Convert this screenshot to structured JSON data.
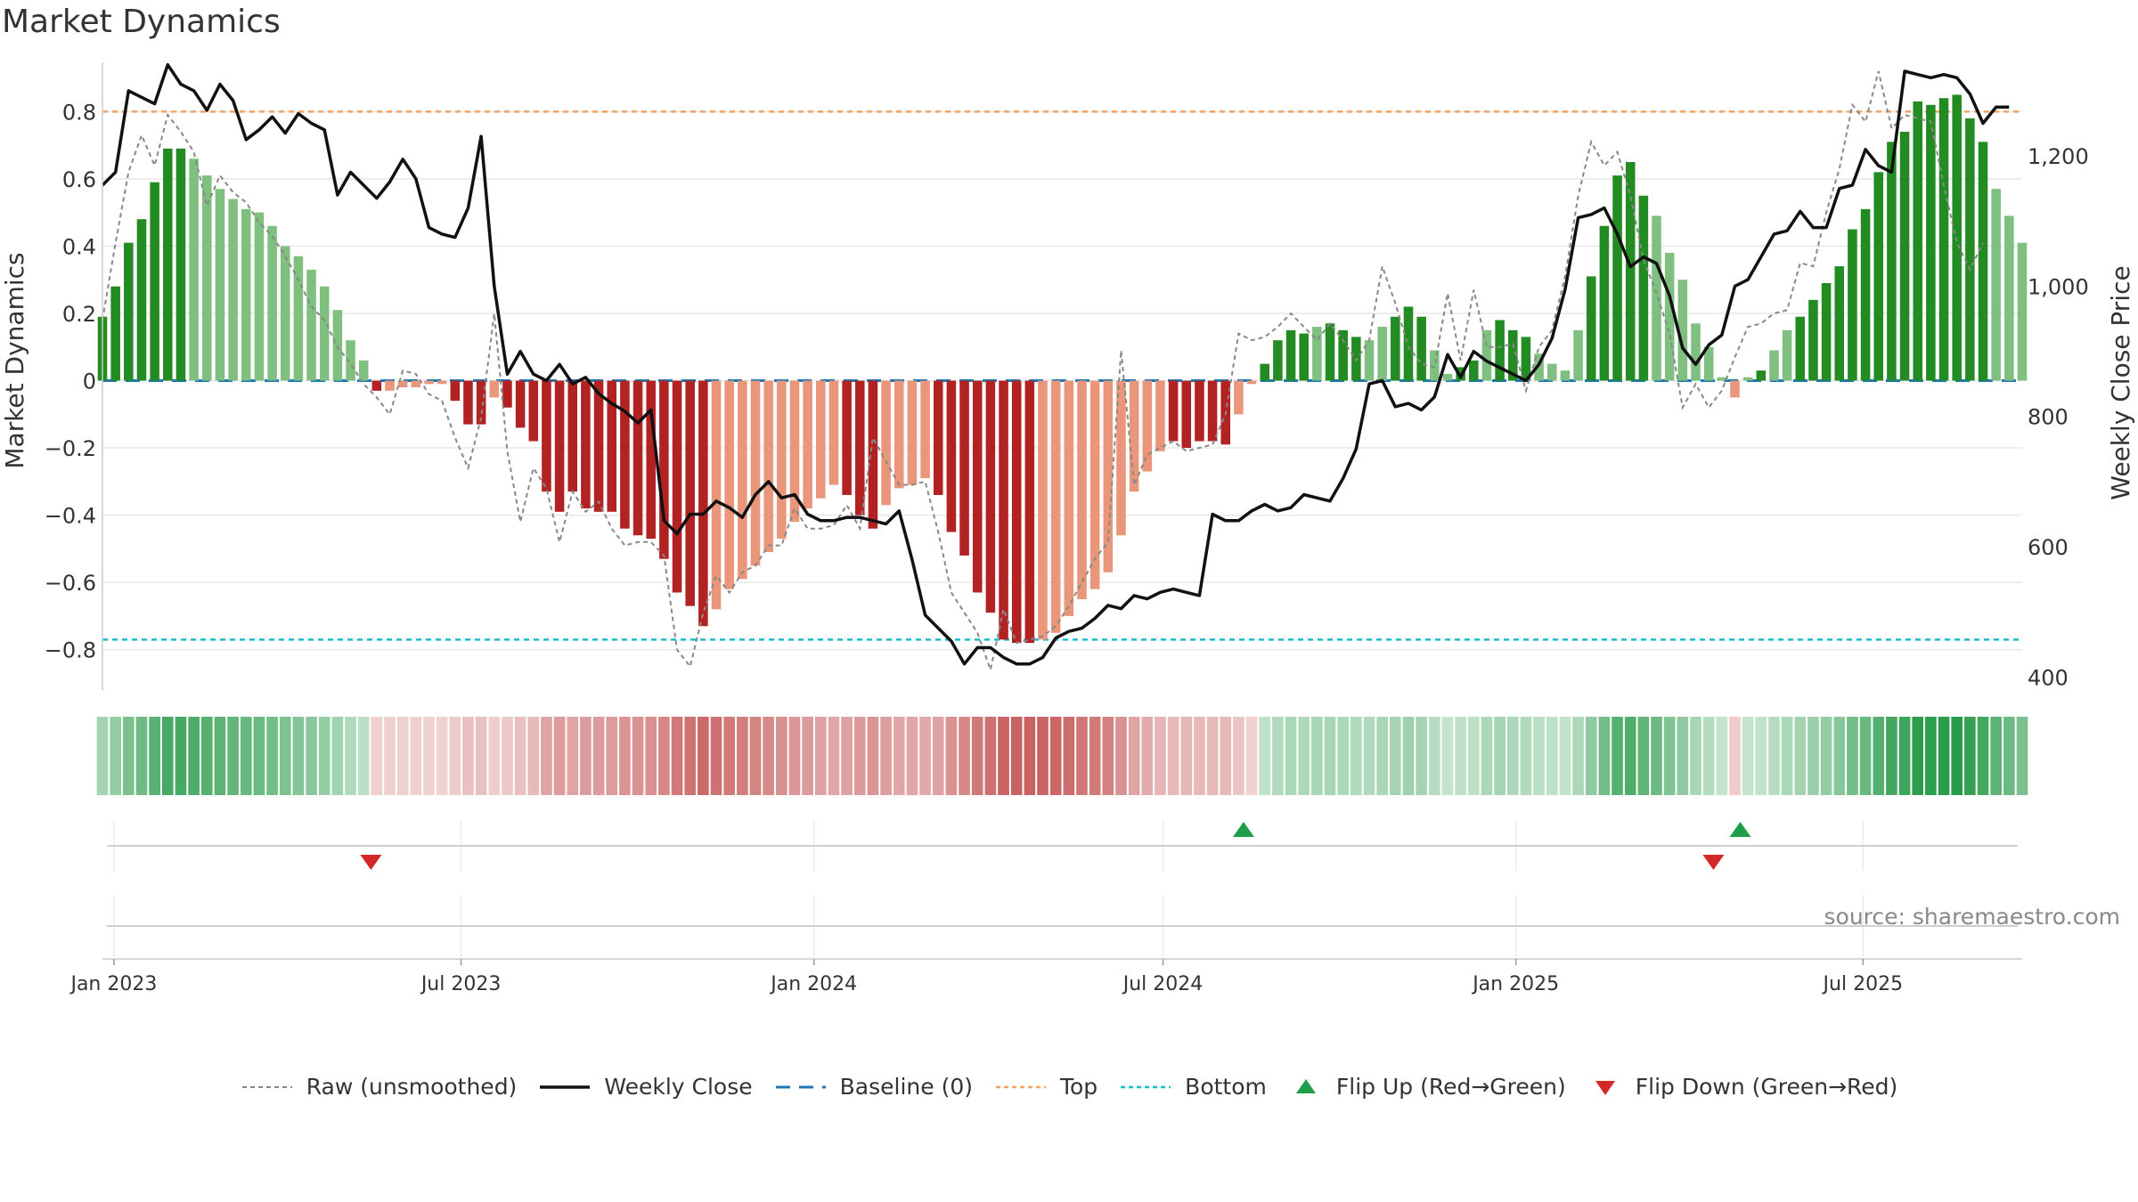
{
  "chart_data": {
    "type": "bar",
    "title": "Market Dynamics",
    "source": "source: sharemaestro.com",
    "y_left": {
      "label": "Market Dynamics",
      "range": [
        -0.92,
        0.92
      ],
      "ticks": [
        0.8,
        0.6,
        0.4,
        0.2,
        0,
        -0.2,
        -0.4,
        -0.6,
        -0.8
      ],
      "tick_labels": [
        "0.8",
        "0.6",
        "0.4",
        "0.2",
        "0",
        "−0.2",
        "−0.4",
        "−0.6",
        "−0.8"
      ]
    },
    "y_right": {
      "label": "Weekly Close Price",
      "range": [
        380,
        1330
      ],
      "ticks": [
        1200,
        1000,
        800,
        600,
        400
      ],
      "tick_labels": [
        "1,200",
        "1,000",
        "800",
        "600",
        "400"
      ]
    },
    "x_axis": {
      "start": "2022-12-26",
      "end": "2025-09-22",
      "ticks": [
        "2023-01-01",
        "2023-07-01",
        "2024-01-01",
        "2024-07-01",
        "2025-01-01",
        "2025-07-01"
      ],
      "tick_labels": [
        "Jan 2023",
        "Jul 2023",
        "Jan 2024",
        "Jul 2024",
        "Jan 2025",
        "Jul 2025"
      ]
    },
    "reference_lines": {
      "top": 0.8,
      "bottom": -0.77,
      "baseline": 0
    },
    "colors": {
      "strong_green": "#228b22",
      "light_green": "#7fbf7f",
      "strong_red": "#b22222",
      "light_red": "#e9967a",
      "raw": "#888888",
      "close": "#111111",
      "baseline": "#1f77b4",
      "top": "#f4a460",
      "bottom": "#17becf",
      "flip_up": "#1e9e4a",
      "flip_down": "#d62728"
    },
    "market_dynamics": [
      0.19,
      0.28,
      0.41,
      0.48,
      0.59,
      0.69,
      0.69,
      0.66,
      0.61,
      0.57,
      0.54,
      0.51,
      0.5,
      0.46,
      0.4,
      0.37,
      0.33,
      0.28,
      0.21,
      0.12,
      0.06,
      -0.03,
      -0.03,
      -0.02,
      -0.02,
      -0.01,
      -0.01,
      -0.06,
      -0.13,
      -0.13,
      -0.05,
      -0.08,
      -0.14,
      -0.18,
      -0.33,
      -0.39,
      -0.33,
      -0.38,
      -0.39,
      -0.39,
      -0.44,
      -0.46,
      -0.47,
      -0.53,
      -0.63,
      -0.67,
      -0.73,
      -0.68,
      -0.62,
      -0.59,
      -0.55,
      -0.51,
      -0.47,
      -0.42,
      -0.38,
      -0.35,
      -0.31,
      -0.34,
      -0.4,
      -0.44,
      -0.37,
      -0.32,
      -0.31,
      -0.29,
      -0.34,
      -0.45,
      -0.52,
      -0.63,
      -0.69,
      -0.77,
      -0.78,
      -0.78,
      -0.77,
      -0.75,
      -0.7,
      -0.65,
      -0.62,
      -0.57,
      -0.46,
      -0.33,
      -0.27,
      -0.21,
      -0.18,
      -0.2,
      -0.18,
      -0.18,
      -0.19,
      -0.1,
      -0.01,
      0.05,
      0.12,
      0.15,
      0.14,
      0.16,
      0.17,
      0.15,
      0.13,
      0.12,
      0.16,
      0.19,
      0.22,
      0.19,
      0.09,
      0.02,
      0.04,
      0.06,
      0.15,
      0.18,
      0.15,
      0.13,
      0.08,
      0.05,
      0.03,
      0.15,
      0.31,
      0.46,
      0.61,
      0.65,
      0.55,
      0.49,
      0.38,
      0.3,
      0.17,
      0.1,
      0.01,
      -0.05,
      0.01,
      0.03,
      0.09,
      0.15,
      0.19,
      0.24,
      0.29,
      0.34,
      0.45,
      0.51,
      0.62,
      0.71,
      0.74,
      0.83,
      0.82,
      0.84,
      0.85,
      0.78,
      0.71,
      0.57,
      0.49,
      0.41
    ],
    "strength_flags": [
      1,
      1,
      1,
      1,
      1,
      1,
      1,
      0,
      0,
      0,
      0,
      0,
      0,
      0,
      0,
      0,
      0,
      0,
      0,
      0,
      0,
      1,
      0,
      0,
      0,
      0,
      0,
      1,
      1,
      1,
      0,
      1,
      1,
      1,
      1,
      1,
      1,
      1,
      1,
      1,
      1,
      1,
      1,
      1,
      1,
      1,
      1,
      0,
      0,
      0,
      0,
      0,
      0,
      0,
      0,
      0,
      0,
      1,
      1,
      1,
      0,
      0,
      0,
      0,
      1,
      1,
      1,
      1,
      1,
      1,
      1,
      1,
      0,
      0,
      0,
      0,
      0,
      0,
      0,
      0,
      0,
      0,
      1,
      1,
      1,
      1,
      1,
      0,
      0,
      1,
      1,
      1,
      1,
      0,
      1,
      1,
      1,
      0,
      0,
      1,
      1,
      1,
      0,
      0,
      1,
      1,
      0,
      1,
      1,
      1,
      0,
      0,
      0,
      0,
      1,
      1,
      1,
      1,
      1,
      0,
      0,
      0,
      0,
      0,
      0,
      0,
      0,
      1,
      0,
      0,
      1,
      1,
      1,
      1,
      1,
      1,
      1,
      1,
      1,
      1,
      1,
      1,
      1,
      1,
      1,
      0,
      0,
      0,
      0,
      0
    ],
    "raw_unsmoothed": [
      0.18,
      0.41,
      0.62,
      0.73,
      0.64,
      0.79,
      0.74,
      0.68,
      0.52,
      0.61,
      0.56,
      0.53,
      0.47,
      0.43,
      0.37,
      0.3,
      0.22,
      0.18,
      0.1,
      0.05,
      -0.01,
      -0.05,
      -0.1,
      0.03,
      0.02,
      -0.04,
      -0.06,
      -0.17,
      -0.26,
      -0.11,
      0.2,
      -0.21,
      -0.42,
      -0.26,
      -0.32,
      -0.48,
      -0.33,
      -0.39,
      -0.36,
      -0.44,
      -0.49,
      -0.48,
      -0.48,
      -0.52,
      -0.8,
      -0.85,
      -0.69,
      -0.58,
      -0.63,
      -0.57,
      -0.55,
      -0.49,
      -0.49,
      -0.38,
      -0.44,
      -0.44,
      -0.43,
      -0.37,
      -0.44,
      -0.17,
      -0.24,
      -0.31,
      -0.31,
      -0.3,
      -0.45,
      -0.63,
      -0.69,
      -0.75,
      -0.86,
      -0.68,
      -0.78,
      -0.77,
      -0.76,
      -0.73,
      -0.67,
      -0.6,
      -0.53,
      -0.48,
      0.09,
      -0.31,
      -0.22,
      -0.2,
      -0.18,
      -0.21,
      -0.2,
      -0.19,
      -0.1,
      0.14,
      0.12,
      0.13,
      0.16,
      0.2,
      0.16,
      0.12,
      0.17,
      0.12,
      0.06,
      0.12,
      0.34,
      0.23,
      0.1,
      0.05,
      0.04,
      0.26,
      0.06,
      0.27,
      0.1,
      0.1,
      0.11,
      -0.03,
      0.1,
      0.15,
      0.31,
      0.55,
      0.71,
      0.64,
      0.68,
      0.55,
      0.36,
      0.26,
      0.14,
      -0.08,
      -0.01,
      -0.08,
      -0.03,
      0.07,
      0.16,
      0.17,
      0.2,
      0.21,
      0.35,
      0.34,
      0.5,
      0.63,
      0.82,
      0.77,
      0.92,
      0.75,
      0.79,
      0.78,
      0.77,
      0.58,
      0.41,
      0.33,
      0.41
    ],
    "weekly_close": [
      1155,
      1175,
      1300,
      1290,
      1280,
      1340,
      1310,
      1300,
      1270,
      1310,
      1285,
      1225,
      1240,
      1260,
      1235,
      1265,
      1250,
      1240,
      1140,
      1175,
      1155,
      1135,
      1160,
      1195,
      1165,
      1090,
      1080,
      1075,
      1120,
      1230,
      1000,
      865,
      900,
      865,
      855,
      880,
      850,
      860,
      835,
      820,
      808,
      790,
      810,
      640,
      620,
      650,
      650,
      670,
      660,
      645,
      680,
      700,
      675,
      680,
      650,
      640,
      640,
      645,
      645,
      640,
      635,
      655,
      580,
      495,
      475,
      455,
      420,
      445,
      445,
      430,
      420,
      420,
      430,
      460,
      470,
      475,
      490,
      510,
      505,
      525,
      520,
      530,
      535,
      530,
      525,
      650,
      640,
      640,
      655,
      665,
      655,
      660,
      680,
      675,
      670,
      705,
      750,
      850,
      855,
      815,
      820,
      810,
      830,
      895,
      860,
      900,
      885,
      875,
      865,
      855,
      880,
      920,
      995,
      1105,
      1110,
      1120,
      1080,
      1030,
      1045,
      1035,
      985,
      905,
      880,
      910,
      925,
      1000,
      1010,
      1045,
      1080,
      1085,
      1115,
      1090,
      1090,
      1150,
      1155,
      1210,
      1185,
      1175,
      1330,
      1325,
      1320,
      1325,
      1320,
      1295,
      1250,
      1275,
      1275
    ],
    "flip_points": [
      {
        "date": "2023-05-15",
        "direction": "down"
      },
      {
        "date": "2024-08-12",
        "direction": "up"
      },
      {
        "date": "2025-04-14",
        "direction": "down"
      },
      {
        "date": "2025-04-28",
        "direction": "up"
      }
    ]
  },
  "legend": [
    {
      "key": "raw",
      "label": "Raw (unsmoothed)"
    },
    {
      "key": "close",
      "label": "Weekly Close"
    },
    {
      "key": "baseline",
      "label": "Baseline (0)"
    },
    {
      "key": "top",
      "label": "Top"
    },
    {
      "key": "bottom",
      "label": "Bottom"
    },
    {
      "key": "flip_up",
      "label": "Flip Up (Red→Green)"
    },
    {
      "key": "flip_down",
      "label": "Flip Down (Green→Red)"
    }
  ]
}
